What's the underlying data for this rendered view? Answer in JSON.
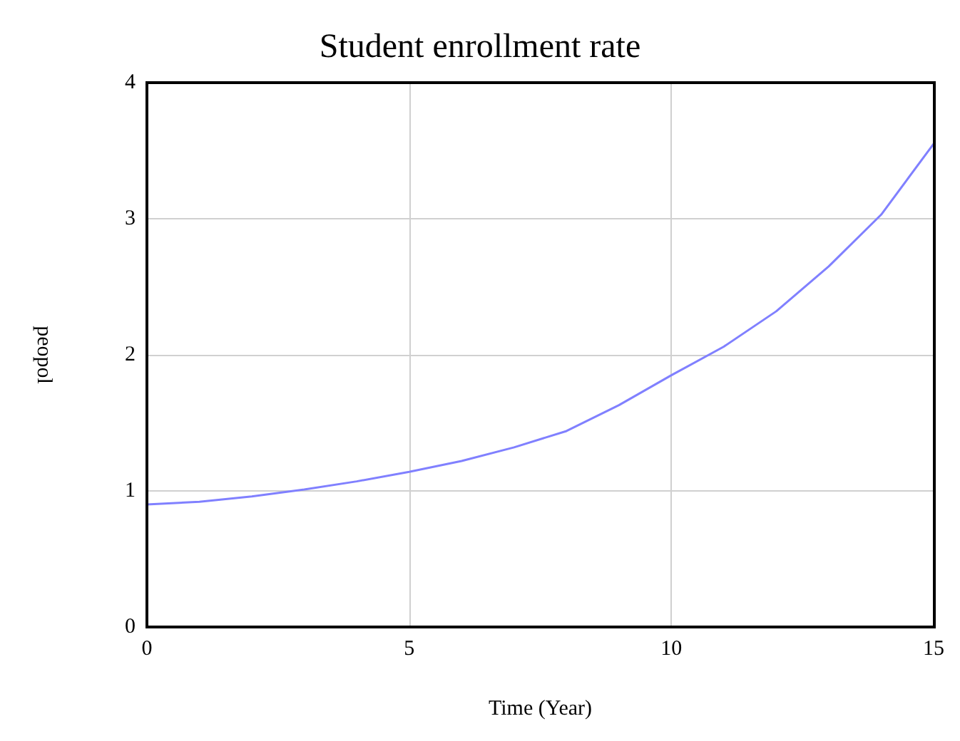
{
  "chart_data": {
    "type": "line",
    "title": "Student enrollment rate",
    "xlabel": "Time (Year)",
    "ylabel": "peopol",
    "x": [
      0,
      1,
      2,
      3,
      4,
      5,
      6,
      7,
      8,
      9,
      10,
      11,
      12,
      13,
      14,
      15
    ],
    "series": [
      {
        "color": "#8080ff",
        "values": [
          0.9,
          0.92,
          0.96,
          1.01,
          1.07,
          1.14,
          1.22,
          1.32,
          1.44,
          1.63,
          1.85,
          2.06,
          2.32,
          2.65,
          3.03,
          3.55
        ]
      }
    ],
    "xlim": [
      0,
      15
    ],
    "xticks": [
      0,
      5,
      10,
      15
    ],
    "ylim": [
      0,
      4
    ],
    "yticks": [
      0,
      1,
      2,
      3,
      4
    ],
    "grid": true,
    "marker": "none",
    "line_style": "solid"
  }
}
